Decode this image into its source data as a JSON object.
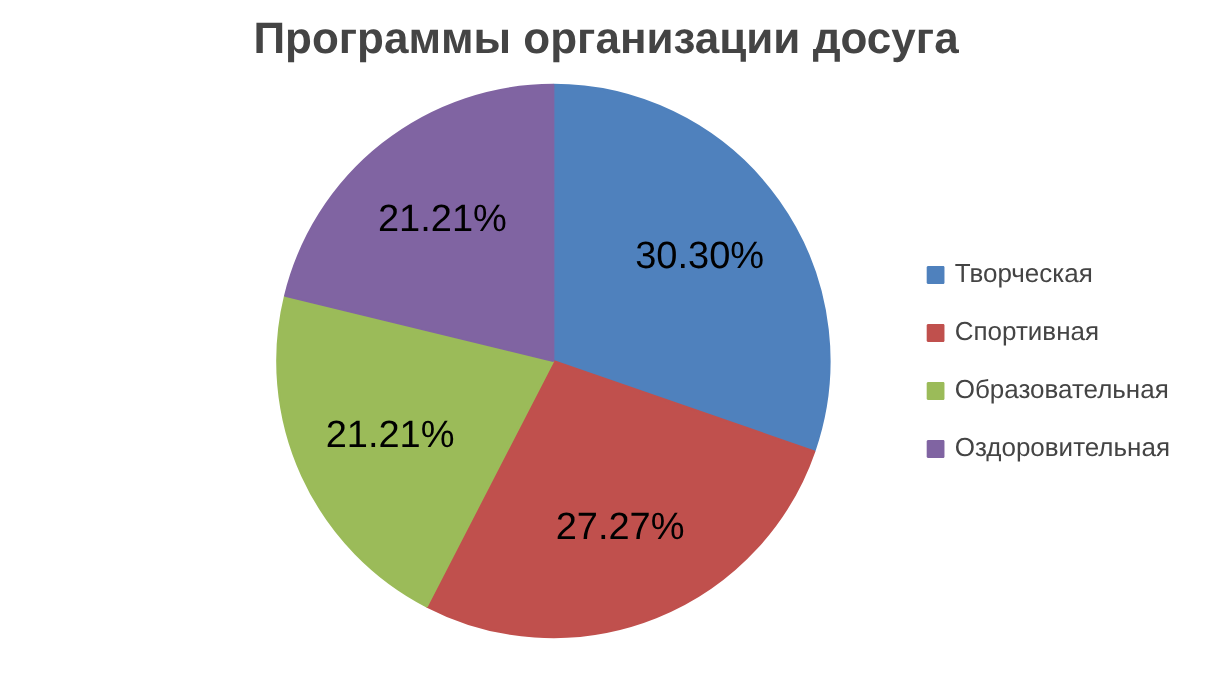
{
  "chart_data": {
    "type": "pie",
    "title": "Программы организации досуга",
    "categories": [
      "Творческая",
      "Спортивная",
      "Образовательная",
      "Оздоровительная"
    ],
    "values": [
      30.3,
      27.27,
      21.21,
      21.21
    ],
    "colors": [
      "#4f81bd",
      "#c0504d",
      "#9bbb59",
      "#8064a2"
    ],
    "value_labels": [
      "30.30%",
      "27.27%",
      "21.21%",
      "21.21%"
    ],
    "legend": "right"
  }
}
